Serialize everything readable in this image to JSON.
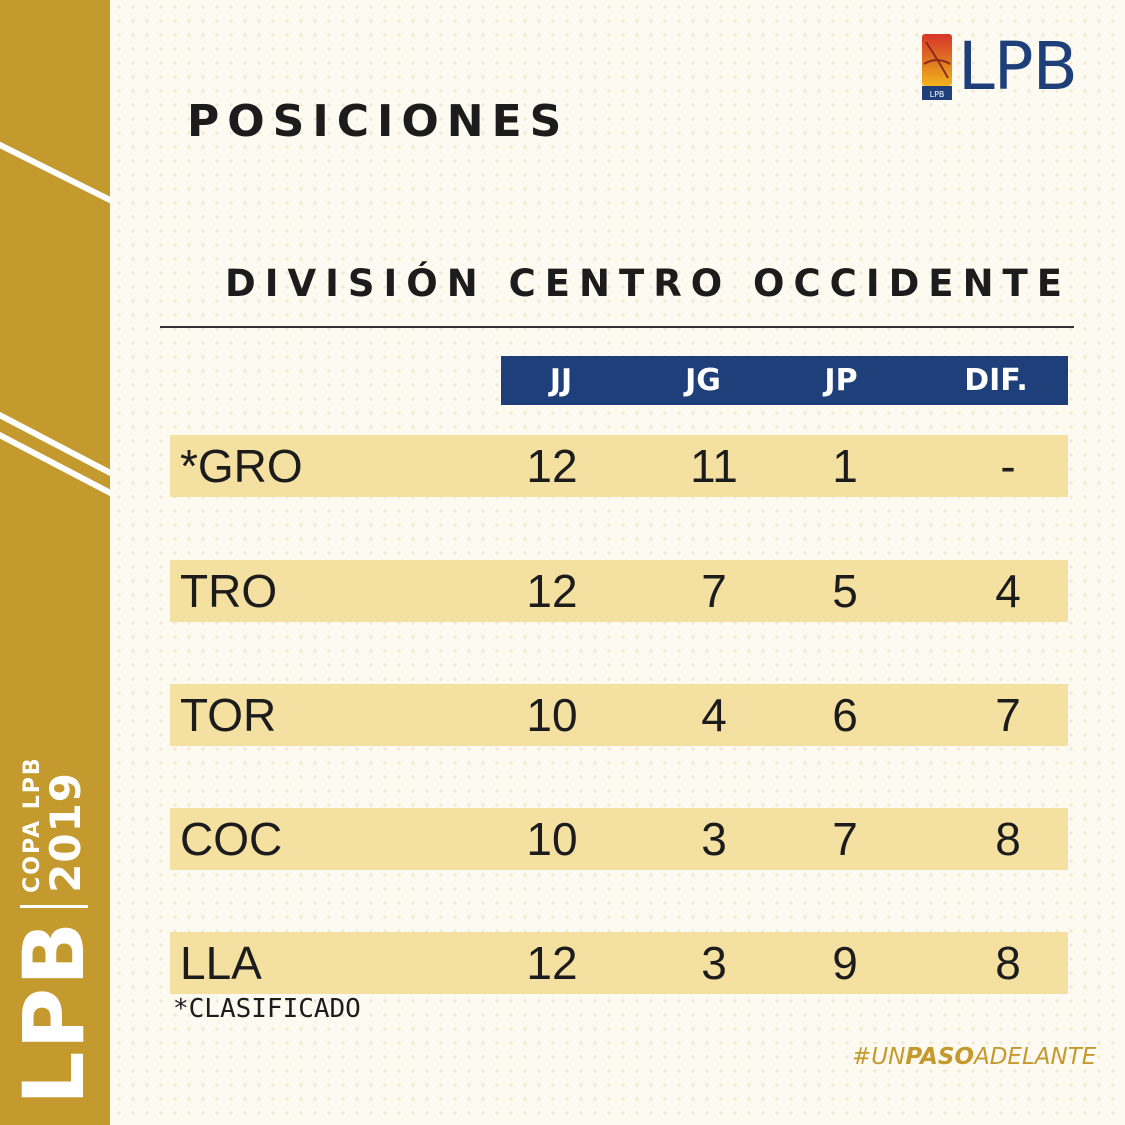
{
  "sidebar": {
    "brand": "LPB",
    "copa": "COPA LPB",
    "year": "2019"
  },
  "logo": {
    "text": "LPB",
    "mark_label": "LPB"
  },
  "title": "POSICIONES",
  "division": "DIVISIÓN CENTRO OCCIDENTE",
  "table": {
    "columns": [
      "JJ",
      "JG",
      "JP",
      "DIF."
    ],
    "rows": [
      {
        "team": "*GRO",
        "jj": "12",
        "jg": "11",
        "jp": "1",
        "dif": "-"
      },
      {
        "team": "TRO",
        "jj": "12",
        "jg": "7",
        "jp": "5",
        "dif": "4"
      },
      {
        "team": "TOR",
        "jj": "10",
        "jg": "4",
        "jp": "6",
        "dif": "7"
      },
      {
        "team": "COC",
        "jj": "10",
        "jg": "3",
        "jp": "7",
        "dif": "8"
      },
      {
        "team": "LLA",
        "jj": "12",
        "jg": "3",
        "jp": "9",
        "dif": "8"
      }
    ]
  },
  "footnote": "*CLASIFICADO",
  "hashtag": {
    "part1": "#UN",
    "part2": "PASO",
    "part3": "ADELANTE"
  },
  "colors": {
    "gold": "#c49a2e",
    "navy": "#1e3f7a",
    "row_fill": "#f4e1a2"
  }
}
